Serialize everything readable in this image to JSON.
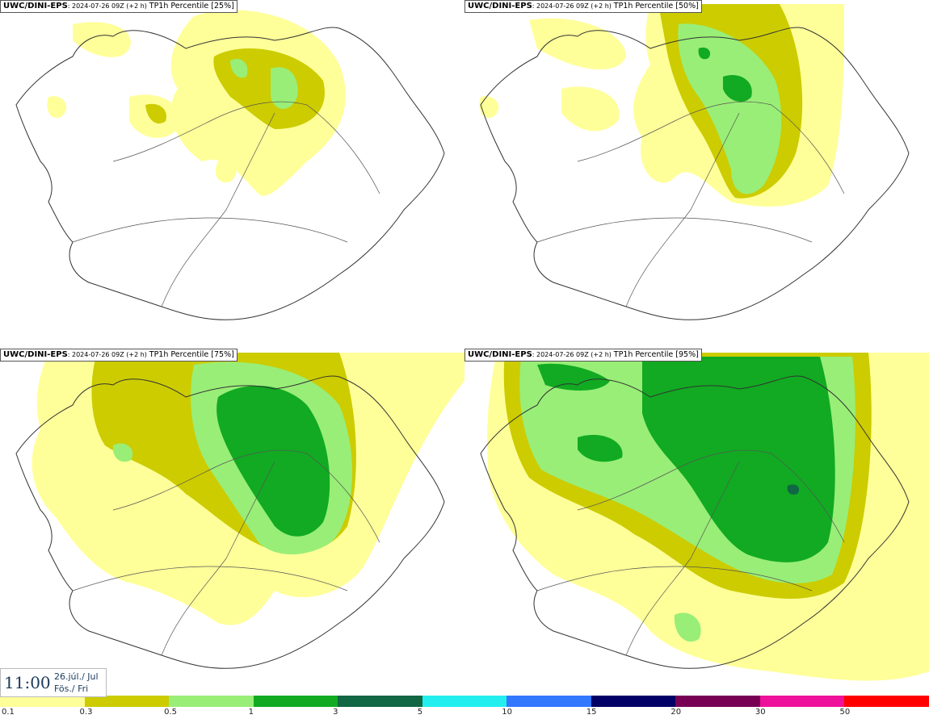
{
  "panels": [
    {
      "model": "UWC/DINI-EPS",
      "run": ": 2024-07-26 09Z (+2 h)",
      "title": "TP1h Percentile [25%]"
    },
    {
      "model": "UWC/DINI-EPS",
      "run": ": 2024-07-26 09Z (+2 h)",
      "title": "TP1h Percentile [50%]"
    },
    {
      "model": "UWC/DINI-EPS",
      "run": ": 2024-07-26 09Z (+2 h)",
      "title": "TP1h Percentile [75%]"
    },
    {
      "model": "UWC/DINI-EPS",
      "run": ": 2024-07-26 09Z (+2 h)",
      "title": "TP1h Percentile [95%]"
    }
  ],
  "valid_time": {
    "time": "11:00",
    "date_line1": "26.júl./ Jul",
    "date_line2": "Fös./ Fri"
  },
  "legend": {
    "colors": [
      "#ffff99",
      "#cccc00",
      "#99ee77",
      "#11aa22",
      "#116644",
      "#22eeee",
      "#3377ff",
      "#000066",
      "#770055",
      "#ee1199",
      "#ff0000"
    ],
    "ticks": [
      "0.1",
      "0.3",
      "0.5",
      "1",
      "3",
      "5",
      "10",
      "15",
      "20",
      "30",
      "50"
    ]
  },
  "colors": {
    "coast": "#333333",
    "light": "#ffff99",
    "olive": "#cccc00",
    "green": "#99ee77",
    "dark_green": "#11aa22",
    "deep_green": "#116644"
  }
}
